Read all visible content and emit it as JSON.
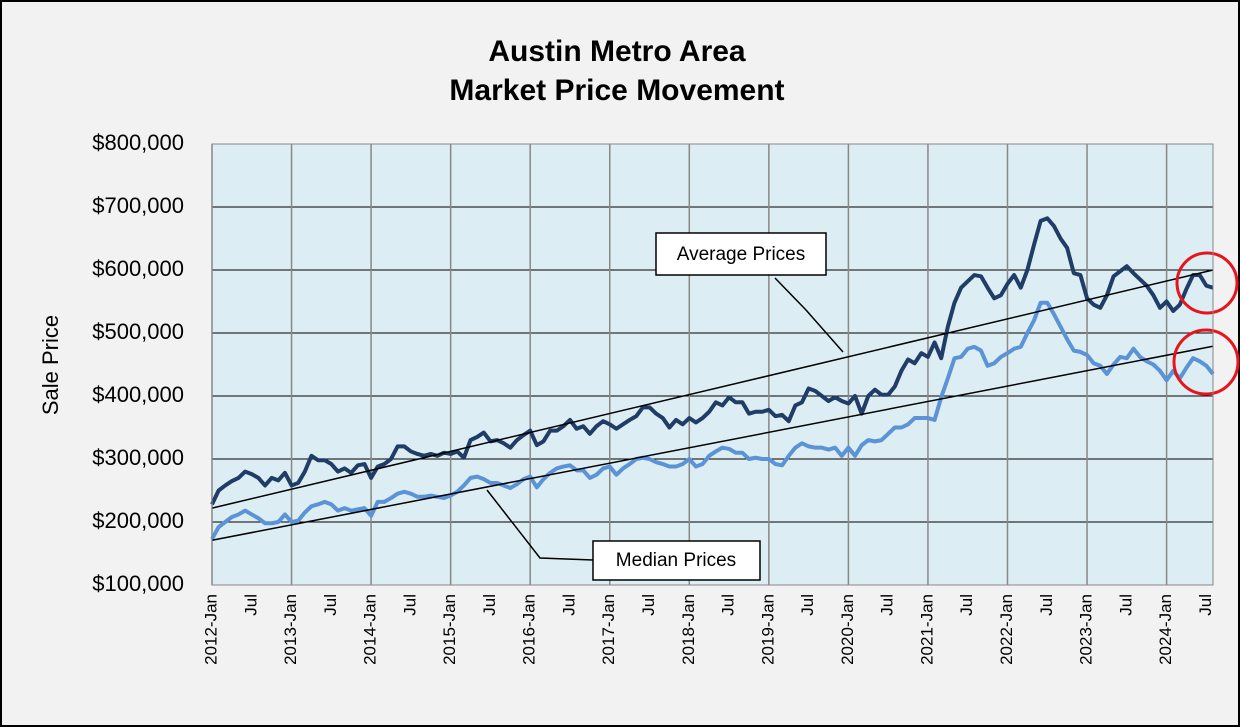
{
  "chart_data": {
    "type": "line",
    "title": "Austin Metro Area",
    "subtitle": "Market Price Movement",
    "y_label": "Sale Price",
    "ylim": [
      100000,
      800000
    ],
    "yticks": [
      {
        "value": 100000,
        "label": "$100,000"
      },
      {
        "value": 200000,
        "label": "$200,000"
      },
      {
        "value": 300000,
        "label": "$300,000"
      },
      {
        "value": 400000,
        "label": "$400,000"
      },
      {
        "value": 500000,
        "label": "$500,000"
      },
      {
        "value": 600000,
        "label": "$600,000"
      },
      {
        "value": 700000,
        "label": "$700,000"
      },
      {
        "value": 800000,
        "label": "$800,000"
      }
    ],
    "grid": true,
    "categories": [
      "2012-Jan",
      null,
      null,
      null,
      null,
      null,
      "Jul",
      null,
      null,
      null,
      null,
      null,
      "2013-Jan",
      null,
      null,
      null,
      null,
      null,
      "Jul",
      null,
      null,
      null,
      null,
      null,
      "2014-Jan",
      null,
      null,
      null,
      null,
      null,
      "Jul",
      null,
      null,
      null,
      null,
      null,
      "2015-Jan",
      null,
      null,
      null,
      null,
      null,
      "Jul",
      null,
      null,
      null,
      null,
      null,
      "2016-Jan",
      null,
      null,
      null,
      null,
      null,
      "Jul",
      null,
      null,
      null,
      null,
      null,
      "2017-Jan",
      null,
      null,
      null,
      null,
      null,
      "Jul",
      null,
      null,
      null,
      null,
      null,
      "2018-Jan",
      null,
      null,
      null,
      null,
      null,
      "Jul",
      null,
      null,
      null,
      null,
      null,
      "2019-Jan",
      null,
      null,
      null,
      null,
      null,
      "Jul",
      null,
      null,
      null,
      null,
      null,
      "2020-Jan",
      null,
      null,
      null,
      null,
      null,
      "Jul",
      null,
      null,
      null,
      null,
      null,
      "2021-Jan",
      null,
      null,
      null,
      null,
      null,
      "Jul",
      null,
      null,
      null,
      null,
      null,
      "2022-Jan",
      null,
      null,
      null,
      null,
      null,
      "Jul",
      null,
      null,
      null,
      null,
      null,
      "2023-Jan",
      null,
      null,
      null,
      null,
      null,
      "Jul",
      null,
      null,
      null,
      null,
      null,
      "2024-Jan",
      null,
      null,
      null,
      null,
      null,
      "Jul",
      null
    ],
    "series": [
      {
        "name": "Average Prices",
        "color": "#1f3d66",
        "values": [
          228000,
          250000,
          258000,
          265000,
          270000,
          280000,
          276000,
          270000,
          258000,
          270000,
          266000,
          278000,
          258000,
          262000,
          280000,
          305000,
          298000,
          298000,
          292000,
          280000,
          285000,
          278000,
          290000,
          292000,
          270000,
          288000,
          292000,
          300000,
          320000,
          320000,
          312000,
          308000,
          305000,
          308000,
          305000,
          310000,
          308000,
          312000,
          302000,
          330000,
          335000,
          342000,
          328000,
          330000,
          325000,
          318000,
          330000,
          338000,
          345000,
          322000,
          328000,
          345000,
          345000,
          352000,
          362000,
          348000,
          352000,
          340000,
          352000,
          360000,
          355000,
          348000,
          355000,
          362000,
          368000,
          382000,
          382000,
          372000,
          365000,
          350000,
          362000,
          355000,
          365000,
          358000,
          365000,
          375000,
          390000,
          385000,
          398000,
          390000,
          390000,
          372000,
          375000,
          375000,
          378000,
          368000,
          370000,
          360000,
          385000,
          390000,
          412000,
          408000,
          400000,
          392000,
          398000,
          392000,
          388000,
          400000,
          372000,
          400000,
          410000,
          402000,
          402000,
          415000,
          440000,
          458000,
          452000,
          468000,
          462000,
          485000,
          460000,
          510000,
          548000,
          572000,
          582000,
          592000,
          590000,
          572000,
          555000,
          560000,
          578000,
          592000,
          572000,
          600000,
          640000,
          678000,
          682000,
          670000,
          650000,
          635000,
          595000,
          592000,
          555000,
          545000,
          540000,
          560000,
          590000,
          598000,
          606000,
          595000,
          585000,
          575000,
          560000,
          540000,
          550000,
          535000,
          545000,
          570000,
          592000,
          592000,
          575000,
          572000
        ]
      },
      {
        "name": "Median Prices",
        "color": "#5b93d6",
        "values": [
          173000,
          192000,
          200000,
          208000,
          212000,
          218000,
          212000,
          206000,
          198000,
          198000,
          200000,
          212000,
          200000,
          202000,
          215000,
          225000,
          228000,
          232000,
          228000,
          218000,
          222000,
          218000,
          220000,
          222000,
          210000,
          232000,
          232000,
          238000,
          245000,
          248000,
          245000,
          240000,
          240000,
          242000,
          240000,
          238000,
          242000,
          248000,
          258000,
          270000,
          272000,
          268000,
          262000,
          262000,
          258000,
          254000,
          260000,
          268000,
          272000,
          255000,
          268000,
          278000,
          285000,
          288000,
          290000,
          282000,
          282000,
          270000,
          275000,
          285000,
          288000,
          275000,
          285000,
          292000,
          300000,
          302000,
          300000,
          295000,
          292000,
          288000,
          288000,
          292000,
          300000,
          288000,
          292000,
          305000,
          312000,
          318000,
          316000,
          310000,
          310000,
          300000,
          302000,
          300000,
          300000,
          292000,
          290000,
          305000,
          318000,
          325000,
          320000,
          318000,
          318000,
          315000,
          318000,
          305000,
          318000,
          305000,
          322000,
          330000,
          328000,
          330000,
          340000,
          350000,
          350000,
          355000,
          365000,
          365000,
          365000,
          362000,
          398000,
          428000,
          460000,
          462000,
          475000,
          478000,
          472000,
          448000,
          452000,
          462000,
          468000,
          475000,
          478000,
          500000,
          520000,
          548000,
          548000,
          530000,
          510000,
          490000,
          472000,
          470000,
          465000,
          452000,
          448000,
          435000,
          450000,
          462000,
          460000,
          475000,
          462000,
          455000,
          450000,
          440000,
          425000,
          440000,
          428000,
          445000,
          460000,
          455000,
          448000,
          435000
        ]
      }
    ],
    "trend_lines": [
      {
        "color": "#000000",
        "values": [
          222000,
          600000
        ]
      },
      {
        "color": "#000000",
        "values": [
          171000,
          479000
        ]
      }
    ]
  }
}
